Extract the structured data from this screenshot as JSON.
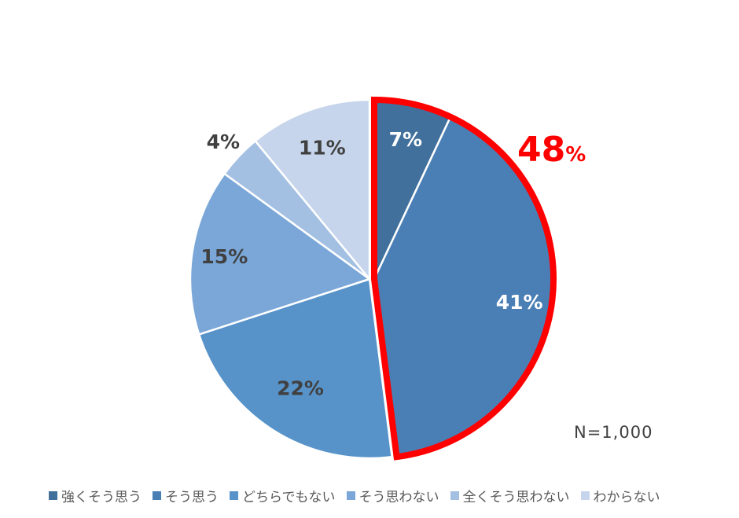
{
  "chart_data": {
    "type": "pie",
    "title": "",
    "start_angle": "12 o'clock, clockwise",
    "categories": [
      "強くそう思う",
      "そう思う",
      "どちらでもない",
      "そう思わない",
      "全くそう思わない",
      "わからない"
    ],
    "values": [
      7,
      41,
      22,
      15,
      4,
      11
    ],
    "labels": [
      "7%",
      "41%",
      "22%",
      "15%",
      "4%",
      "11%"
    ],
    "colors": [
      "#41709c",
      "#4a7fb5",
      "#5793c9",
      "#7aa7d8",
      "#a3c0e3",
      "#c6d5eb"
    ],
    "label_colors": [
      "#ffffff",
      "#ffffff",
      "#404040",
      "#404040",
      "#404040",
      "#404040"
    ],
    "highlight": {
      "group": [
        "強くそう思う",
        "そう思う"
      ],
      "value_text": "48",
      "unit_text": "%",
      "border_color": "#ff0000"
    },
    "annotation": "N=1,000",
    "legend_position": "bottom"
  },
  "legend": {
    "items": [
      {
        "label": "強くそう思う",
        "color": "#41709c"
      },
      {
        "label": "そう思う",
        "color": "#4a7fb5"
      },
      {
        "label": "どちらでもない",
        "color": "#5793c9"
      },
      {
        "label": "そう思わない",
        "color": "#7aa7d8"
      },
      {
        "label": "全くそう思わない",
        "color": "#a3c0e3"
      },
      {
        "label": "わからない",
        "color": "#c6d5eb"
      }
    ]
  },
  "annotations": {
    "sample_size": "N=1,000",
    "highlight_value": "48",
    "highlight_unit": "%"
  }
}
